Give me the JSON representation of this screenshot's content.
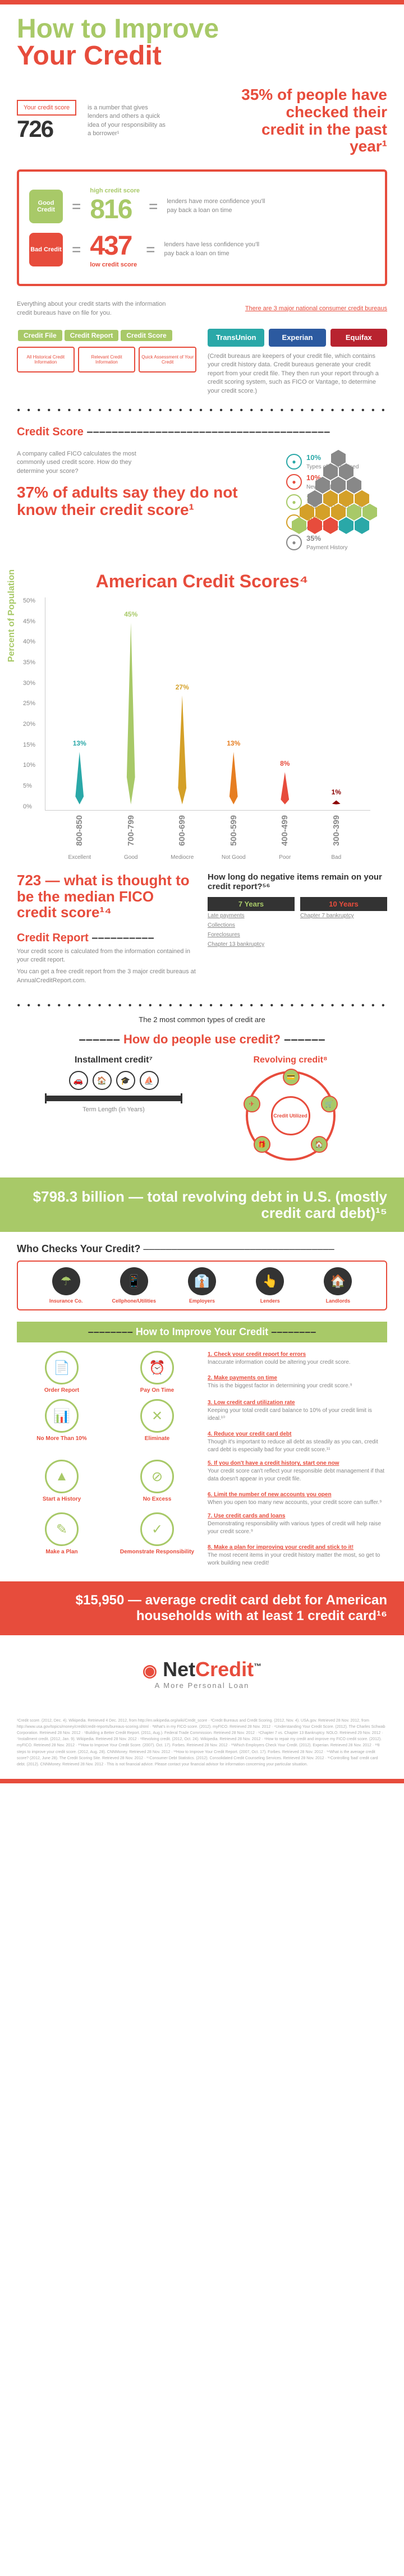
{
  "title1": "How to Improve",
  "title2": "Your Credit",
  "yourScore": "Your credit score",
  "scoreDigits": "726",
  "scoreDesc": "is a number that gives lenders and others a quick idea of your responsibility as a borrower¹",
  "stat35": "35% of people have checked their credit in the past year¹",
  "goodBadge": "Good Credit",
  "badBadge": "Bad Credit",
  "goodDigits": "816",
  "badDigits": "437",
  "highLbl": "high credit score",
  "lowLbl": "low credit score",
  "goodDesc": "lenders have more confidence you'll pay back a loan on time",
  "badDesc": "lenders have less confidence you'll pay back a loan on time",
  "bureauIntro": "Everything about your credit starts with the information credit bureaus have on file for you.",
  "bureauNote": "There are 3 major national consumer credit bureaus",
  "bureaus": [
    "TransUnion",
    "Experian",
    "Equifax"
  ],
  "bureauColors": [
    "#2aa8a8",
    "#2c5aa0",
    "#b8232f"
  ],
  "hdrFile": "Credit File",
  "hdrReport": "Credit Report",
  "hdrScore": "Credit Score",
  "fileBoxes": [
    "All Historical Credit Information",
    "Relevant Credit Information",
    "Quick Assessment of Your Credit"
  ],
  "bureauDesc": "(Credit bureaus are keepers of your credit file, which contains your credit history data. Credit bureaus generate your credit report from your credit file. They then run your report through a credit scoring system, such as FICO or Vantage, to determine your credit score.)",
  "scoreLbl": "Credit Score",
  "ficoDesc": "A company called FICO calculates the most commonly used credit score. How do they determine your score?",
  "stat37": "37% of adults say they do not know their credit score¹",
  "factors": [
    {
      "pct": "10%",
      "label": "Types of Credit Used",
      "color": "#2aa8a8"
    },
    {
      "pct": "10%",
      "label": "New Credit",
      "color": "#e74c3c"
    },
    {
      "pct": "15%",
      "label": "Length of Credit History",
      "color": "#a8c968"
    },
    {
      "pct": "30%",
      "label": "Amounts Owed",
      "color": "#d4a028"
    },
    {
      "pct": "35%",
      "label": "Payment History",
      "color": "#888"
    }
  ],
  "chartTitle": "American Credit Scores⁴",
  "yLabel": "Percent of Population",
  "yMax": 50,
  "yTicks": [
    "50%",
    "45%",
    "40%",
    "35%",
    "30%",
    "25%",
    "20%",
    "15%",
    "10%",
    "5%",
    "0%"
  ],
  "bars": [
    {
      "range": "800-850",
      "cat": "Excellent",
      "pct": 13,
      "color": "#2aa8a8"
    },
    {
      "range": "700-799",
      "cat": "Good",
      "pct": 45,
      "color": "#a8c968"
    },
    {
      "range": "600-699",
      "cat": "Mediocre",
      "pct": 27,
      "color": "#d4a028"
    },
    {
      "range": "500-599",
      "cat": "Not Good",
      "pct": 13,
      "color": "#e67e22"
    },
    {
      "range": "400-499",
      "cat": "Poor",
      "pct": 8,
      "color": "#e74c3c"
    },
    {
      "range": "300-399",
      "cat": "Bad",
      "pct": 1,
      "color": "#8b0000"
    }
  ],
  "median": "723 — what is thought to be the median FICO credit score¹⁴",
  "negTitle": "How long do negative items remain on your credit report?⁵⁶",
  "yr7": "7 Years",
  "yr10": "10 Years",
  "yr7Items": [
    "Late payments",
    "Collections",
    "Foreclosures",
    "Chapter 13 bankruptcy"
  ],
  "yr10Items": [
    "Chapter 7 bankruptcy"
  ],
  "reportLbl": "Credit Report",
  "reportDesc1": "Your credit score is calculated from the information contained in your credit report.",
  "reportDesc2": "You can get a free credit report from the 3 major credit bureaus at AnnualCreditReport.com.",
  "useIntro": "The 2 most common types of credit are",
  "useHdr": "How do people use credit?",
  "instLbl": "Installment credit⁷",
  "revLbl": "Revolving credit⁸",
  "termLbl": "Term Length (in Years)",
  "revInner": "Credit Utilized",
  "debt": "$798.3 billion — total revolving debt in U.S. (mostly credit card debt)¹⁵",
  "whoTitle": "Who Checks Your Credit?",
  "who": [
    {
      "ico": "☂",
      "lbl": "Insurance Co."
    },
    {
      "ico": "📱",
      "lbl": "Cellphone/Utilities"
    },
    {
      "ico": "👔",
      "lbl": "Employers"
    },
    {
      "ico": "👆",
      "lbl": "Lenders"
    },
    {
      "ico": "🏠",
      "lbl": "Landlords"
    }
  ],
  "improveHdr": "How to Improve Your Credit",
  "improve": [
    {
      "ico": "📄",
      "lbl": "Order Report",
      "t": "1. Check your credit report for errors",
      "d": "Inaccurate information could be altering your credit score."
    },
    {
      "ico": "⏰",
      "lbl": "Pay On Time",
      "t": "2. Make payments on time",
      "d": "This is the biggest factor in determining your credit score.⁹"
    },
    {
      "ico": "📊",
      "lbl": "No More Than 10%",
      "t": "3. Low credit card utilization rate",
      "d": "Keeping your total credit card balance to 10% of your credit limit is ideal.¹⁰"
    },
    {
      "ico": "✕",
      "lbl": "Eliminate",
      "t": "4. Reduce your credit card debt",
      "d": "Though it's important to reduce all debt as steadily as you can, credit card debt is especially bad for your credit score.¹¹"
    },
    {
      "ico": "▲",
      "lbl": "Start a History",
      "t": "5. If you don't have a credit history, start one now",
      "d": "Your credit score can't reflect your responsible debt management if that data doesn't appear in your credit file."
    },
    {
      "ico": "⊘",
      "lbl": "No Excess",
      "t": "6. Limit the number of new accounts you open",
      "d": "When you open too many new accounts, your credit score can suffer.⁹"
    },
    {
      "ico": "✎",
      "lbl": "Make a Plan",
      "t": "7. Use credit cards and loans",
      "d": "Demonstrating responsibility with various types of credit will help raise your credit score.⁹"
    },
    {
      "ico": "✓",
      "lbl": "Demonstrate Responsibility",
      "t": "8. Make a plan for improving your credit and stick to it!",
      "d": "The most recent items in your credit history matter the most, so get to work building new credit!"
    }
  ],
  "cc15k": "$15,950 — average credit card debt for American households with at least 1 credit card¹⁶",
  "logo1": "Net",
  "logo2": "Credit",
  "tagline": "A More Personal Loan",
  "refs": "¹Credit score. (2012, Dec. 4). Wikipedia. Retrieved 4 Dec. 2012, from http://en.wikipedia.org/wiki/Credit_score · ²Credit Bureaus and Credit Scoring. (2012, Nov. 4). USA.gov. Retrieved 28 Nov. 2012, from http://www.usa.gov/topics/money/credit/credit-reports/bureaus-scoring.shtml · ³What's in my FICO score. (2012). myFICO. Retrieved 28 Nov. 2012 · ⁴Understanding Your Credit Score. (2012). The Charles Schwab Corporation. Retrieved 28 Nov. 2012 · ⁵Building a Better Credit Report. (2011, Aug.). Federal Trade Commission. Retrieved 28 Nov. 2012 · ⁶Chapter 7 vs. Chapter 13 Bankruptcy. NOLO. Retrieved 29 Nov. 2012 · ⁷Installment credit. (2012, Jan. 9). Wikipedia. Retrieved 28 Nov. 2012 · ⁸Revolving credit. (2012, Oct. 24). Wikipedia. Retrieved 28 Nov. 2012 · ⁹How to repair my credit and improve my FICO credit score. (2012). myFICO. Retrieved 28 Nov. 2012 · ¹⁰How to Improve Your Credit Score. (2007). Oct. 17). Forbes. Retrieved 28 Nov. 2012 · ¹¹Which Employers Check Your Credit. (2012). Experian. Retrieved 28 Nov. 2012 · ¹²8 steps to improve your credit score. (2012, Aug. 28). CNNMoney. Retrieved 28 Nov. 2012 · ¹³How to Improve Your Credit Report. (2007, Oct. 17). Forbes. Retrieved 28 Nov. 2012 · ¹⁴What is the average credit score? (2012, June 28). The Credit Scoring Site. Retrieved 28 Nov. 2012 · ¹⁵Consumer Debt Statistics. (2012). Consolidated Credit Counseling Services. Retrieved 28 Nov. 2012 · ¹⁶Controlling 'bad' credit card debt. (2012). CNNMoney. Retrieved 28 Nov. 2012 · This is not financial advice. Please contact your financial advisor for information concerning your particular situation.",
  "tm": "™"
}
